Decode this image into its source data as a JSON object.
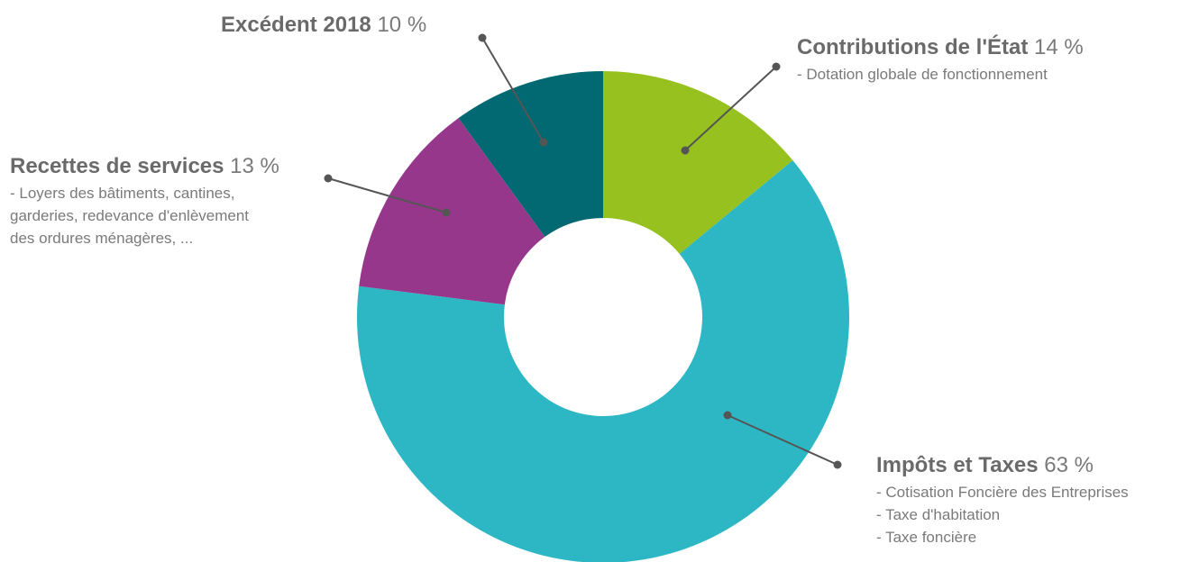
{
  "chart_data": {
    "type": "pie",
    "donut": true,
    "slices": [
      {
        "name": "Contributions de l'État",
        "value": 14,
        "percent_label": "14 %",
        "color": "#97c11f",
        "description": [
          "- Dotation globale de fonctionnement"
        ]
      },
      {
        "name": "Impôts et Taxes",
        "value": 63,
        "percent_label": "63 %",
        "color": "#2db7c5",
        "description": [
          "- Cotisation Foncière des Entreprises",
          "- Taxe d'habitation",
          "- Taxe foncière"
        ]
      },
      {
        "name": "Recettes de services",
        "value": 13,
        "percent_label": "13 %",
        "color": "#96378c",
        "description": [
          "- Loyers des bâtiments, cantines,",
          "garderies, redevance d'enlèvement",
          "des ordures ménagères, ..."
        ]
      },
      {
        "name": "Excédent 2018",
        "value": 10,
        "percent_label": "10 %",
        "color": "#026871",
        "description": []
      }
    ]
  }
}
